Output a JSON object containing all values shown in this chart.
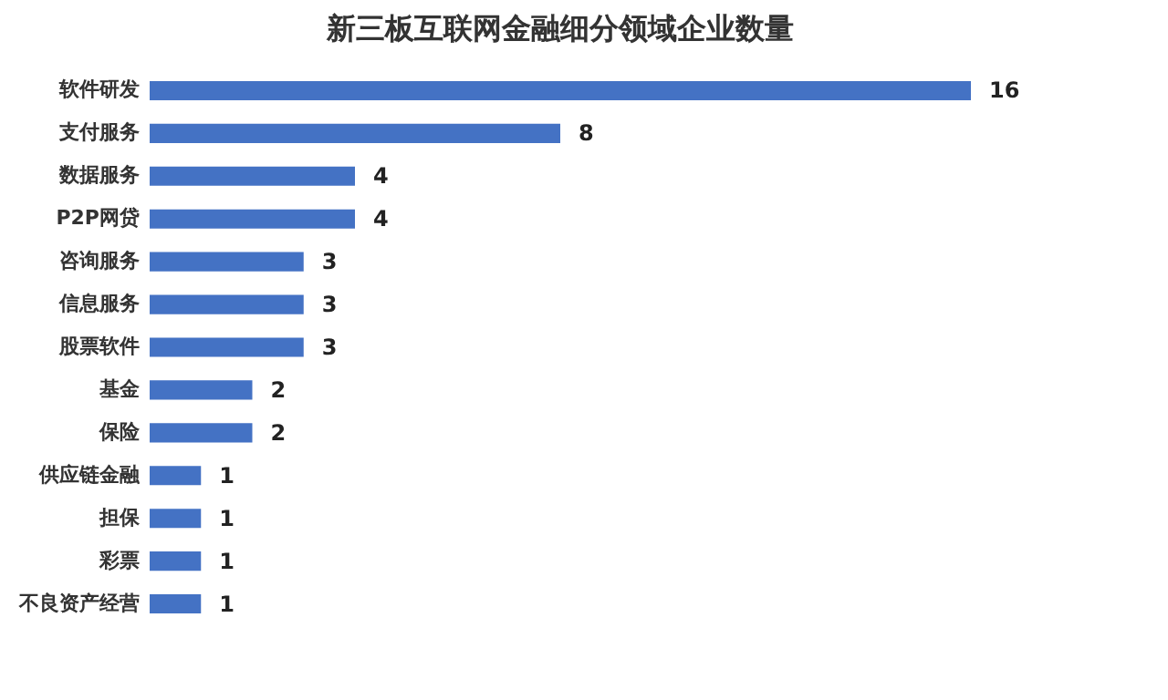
{
  "chart_data": {
    "type": "bar",
    "title": "新三板互联网金融细分领域企业数量",
    "orientation": "horizontal",
    "categories": [
      "软件研发",
      "支付服务",
      "数据服务",
      "P2P网贷",
      "咨询服务",
      "信息服务",
      "股票软件",
      "基金",
      "保险",
      "供应链金融",
      "担保",
      "彩票",
      "不良资产经营"
    ],
    "values": [
      16,
      8,
      4,
      4,
      3,
      3,
      3,
      2,
      2,
      1,
      1,
      1,
      1
    ],
    "color": "#4472c4",
    "data_labels": true,
    "grid": false
  }
}
